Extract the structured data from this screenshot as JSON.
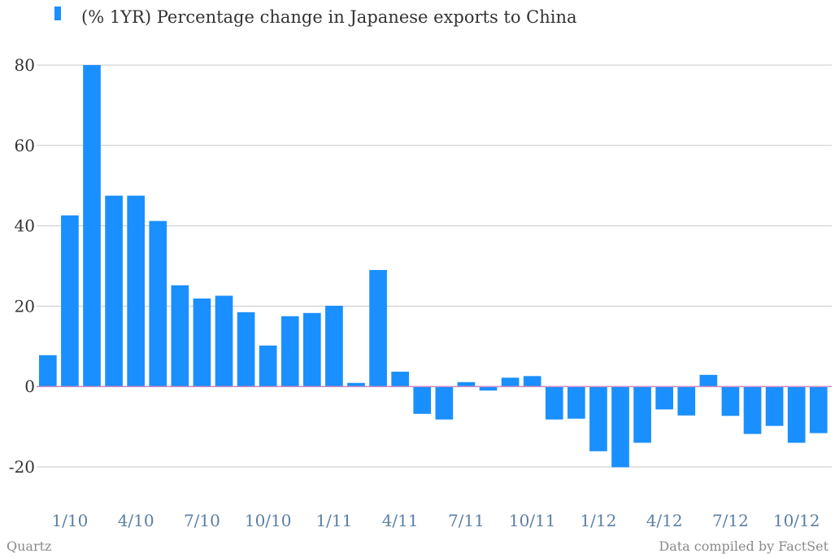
{
  "chart_data": {
    "type": "bar",
    "title": "",
    "xlabel": "",
    "ylabel": "",
    "legend": {
      "position": "top-left",
      "entries": [
        "(% 1YR) Percentage change in Japanese exports to China"
      ]
    },
    "series": [
      {
        "name": "(% 1YR) Percentage change in Japanese exports to China",
        "color": "#1a8fff",
        "values": [
          7.8,
          42.6,
          80.0,
          47.5,
          47.5,
          41.2,
          25.2,
          21.9,
          22.6,
          18.5,
          10.2,
          17.5,
          18.3,
          20.1,
          0.9,
          29.0,
          3.7,
          -6.8,
          -8.2,
          1.1,
          -1.0,
          2.2,
          2.6,
          -8.2,
          -8.0,
          -16.1,
          -20.1,
          -14.0,
          -5.7,
          -7.2,
          2.9,
          -7.3,
          -11.8,
          -9.8,
          -14.0,
          -11.6
        ]
      }
    ],
    "categories": [
      "12/09",
      "1/10",
      "2/10",
      "3/10",
      "4/10",
      "5/10",
      "6/10",
      "7/10",
      "8/10",
      "9/10",
      "10/10",
      "11/10",
      "12/10",
      "1/11",
      "2/11",
      "3/11",
      "4/11",
      "5/11",
      "6/11",
      "7/11",
      "8/11",
      "9/11",
      "10/11",
      "11/11",
      "12/11",
      "1/12",
      "2/12",
      "3/12",
      "4/12",
      "5/12",
      "6/12",
      "7/12",
      "8/12",
      "9/12",
      "10/12",
      "11/12"
    ],
    "xtick_labels": [
      "1/10",
      "4/10",
      "7/10",
      "10/10",
      "1/11",
      "4/11",
      "7/11",
      "10/11",
      "1/12",
      "4/12",
      "7/12",
      "10/12"
    ],
    "yticks": [
      80,
      60,
      40,
      20,
      0,
      -20
    ],
    "ylim": [
      -20,
      80
    ],
    "grid": true,
    "zero_line_color": "#c98ac9",
    "grid_color": "#c8c8c8",
    "tick_label_color_x": "#5a7fa6"
  },
  "footer": {
    "source_left": "Quartz",
    "source_right": "Data compiled by FactSet"
  }
}
